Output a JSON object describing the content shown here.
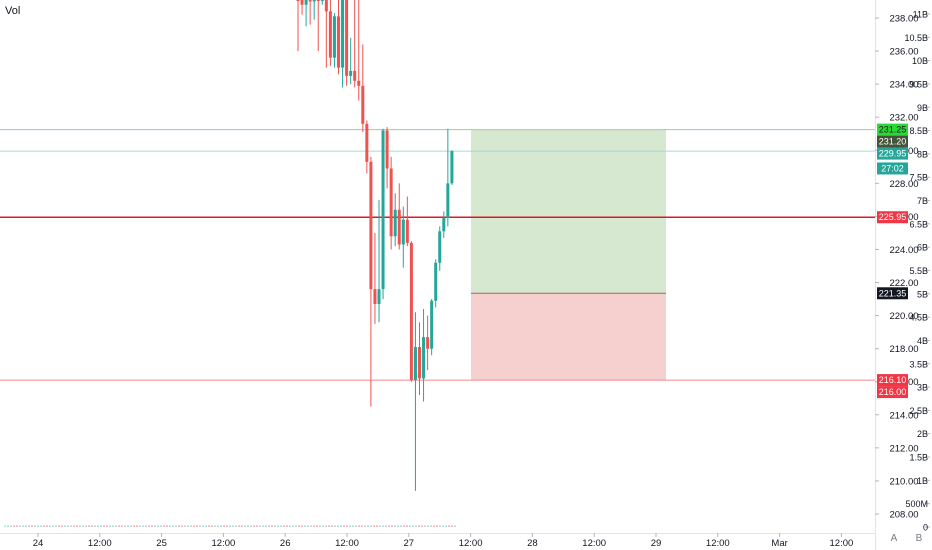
{
  "legend": {
    "volume_label": "Vol"
  },
  "buttons": {
    "auto_label": "A",
    "log_label": "B"
  },
  "colors": {
    "up": "#26a69a",
    "down": "#ef5350",
    "profit_zone": "#d6e8d0",
    "loss_zone": "#f6cfcf"
  },
  "chart_data": {
    "type": "candlestick",
    "price_axis": {
      "ticks": [
        "238.00",
        "236.00",
        "234.00",
        "232.00",
        "230.00",
        "228.00",
        "226.00",
        "224.00",
        "222.00",
        "220.00",
        "218.00",
        "216.00",
        "214.00",
        "212.00",
        "210.00",
        "208.00"
      ],
      "ylim": [
        207.3,
        239.6
      ]
    },
    "volume_axis": {
      "ticks": [
        "11B",
        "10.5B",
        "10B",
        "9.5B",
        "9B",
        "8.5B",
        "8B",
        "7.5B",
        "7B",
        "6.5B",
        "6B",
        "5.5B",
        "5B",
        "4.5B",
        "4B",
        "3.5B",
        "3B",
        "2.5B",
        "2B",
        "1.5B",
        "1B",
        "500M",
        "0"
      ]
    },
    "time_axis": {
      "ticks": [
        "24",
        "12:00",
        "25",
        "12:00",
        "26",
        "12:00",
        "27",
        "12:00",
        "28",
        "12:00",
        "29",
        "12:00",
        "Mar",
        "12:00"
      ]
    },
    "price_labels": [
      {
        "text": "231.25",
        "price": 231.25,
        "bg": "#2bd936",
        "fg": "#131722"
      },
      {
        "text": "231.20",
        "price": 231.2,
        "bg": "#44543a",
        "fg": "#ffffff"
      },
      {
        "text": "229.95",
        "price": 229.95,
        "bg": "#26a69a",
        "fg": "#ffffff"
      },
      {
        "text": "27:02",
        "price": 228.9,
        "bg": "#26a69a",
        "fg": "#ffffff"
      },
      {
        "text": "225.95",
        "price": 225.95,
        "bg": "#f23645",
        "fg": "#ffffff"
      },
      {
        "text": "221.35",
        "price": 221.35,
        "bg": "#131722",
        "fg": "#ffffff"
      },
      {
        "text": "216.10",
        "price": 216.1,
        "bg": "#f23645",
        "fg": "#ffffff"
      },
      {
        "text": "216.00",
        "price": 216.0,
        "bg": "#f23645",
        "fg": "#ffffff"
      }
    ],
    "horizontal_lines": [
      {
        "price": 231.25,
        "color": "#8fd98f",
        "width": 1
      },
      {
        "price": 229.95,
        "color": "#a0dcd6",
        "width": 1
      },
      {
        "price": 225.95,
        "color": "#e0191f",
        "width": 1.5
      },
      {
        "price": 216.1,
        "color": "#f08a8a",
        "width": 1
      }
    ],
    "position_tool": {
      "entry": 221.35,
      "target": 231.25,
      "stop": 216.1
    },
    "candles": [
      {
        "o": 239.9,
        "h": 240.2,
        "l": 236.0,
        "c": 239.6
      },
      {
        "o": 239.6,
        "h": 240.0,
        "l": 238.2,
        "c": 238.8
      },
      {
        "o": 238.8,
        "h": 240.0,
        "l": 237.5,
        "c": 239.7
      },
      {
        "o": 239.7,
        "h": 240.0,
        "l": 237.6,
        "c": 239.0
      },
      {
        "o": 239.0,
        "h": 240.0,
        "l": 237.9,
        "c": 239.6
      },
      {
        "o": 239.6,
        "h": 240.0,
        "l": 236.0,
        "c": 239.3
      },
      {
        "o": 239.3,
        "h": 240.0,
        "l": 238.8,
        "c": 239.9
      },
      {
        "o": 239.9,
        "h": 240.0,
        "l": 235.0,
        "c": 238.4
      },
      {
        "o": 238.4,
        "h": 239.2,
        "l": 235.1,
        "c": 235.6
      },
      {
        "o": 235.6,
        "h": 238.3,
        "l": 235.0,
        "c": 238.1
      },
      {
        "o": 238.1,
        "h": 240.0,
        "l": 234.6,
        "c": 235.0
      },
      {
        "o": 235.0,
        "h": 240.0,
        "l": 233.8,
        "c": 239.5
      },
      {
        "o": 239.5,
        "h": 240.0,
        "l": 233.9,
        "c": 234.5
      },
      {
        "o": 234.5,
        "h": 236.8,
        "l": 234.0,
        "c": 234.8
      },
      {
        "o": 234.8,
        "h": 240.0,
        "l": 233.8,
        "c": 234.2
      },
      {
        "o": 234.2,
        "h": 240.0,
        "l": 233.0,
        "c": 233.9
      },
      {
        "o": 233.9,
        "h": 236.4,
        "l": 231.1,
        "c": 231.6
      },
      {
        "o": 231.6,
        "h": 231.8,
        "l": 228.6,
        "c": 229.3
      },
      {
        "o": 229.3,
        "h": 229.6,
        "l": 214.5,
        "c": 221.6
      },
      {
        "o": 221.6,
        "h": 225.0,
        "l": 219.5,
        "c": 220.7
      },
      {
        "o": 220.7,
        "h": 227.0,
        "l": 219.6,
        "c": 221.6
      },
      {
        "o": 221.6,
        "h": 231.3,
        "l": 221.0,
        "c": 231.2
      },
      {
        "o": 231.2,
        "h": 231.4,
        "l": 227.7,
        "c": 228.9
      },
      {
        "o": 228.9,
        "h": 229.6,
        "l": 224.0,
        "c": 224.8
      },
      {
        "o": 224.8,
        "h": 227.4,
        "l": 224.2,
        "c": 226.4
      },
      {
        "o": 226.4,
        "h": 228.0,
        "l": 224.0,
        "c": 224.3
      },
      {
        "o": 224.3,
        "h": 226.6,
        "l": 222.9,
        "c": 225.8
      },
      {
        "o": 225.8,
        "h": 227.2,
        "l": 224.2,
        "c": 224.4
      },
      {
        "o": 224.4,
        "h": 224.5,
        "l": 216.0,
        "c": 216.1
      },
      {
        "o": 216.1,
        "h": 220.2,
        "l": 209.4,
        "c": 218.1
      },
      {
        "o": 218.1,
        "h": 219.6,
        "l": 215.2,
        "c": 216.2
      },
      {
        "o": 216.2,
        "h": 220.4,
        "l": 214.8,
        "c": 218.7
      },
      {
        "o": 218.7,
        "h": 220.0,
        "l": 216.7,
        "c": 218.0
      },
      {
        "o": 218.0,
        "h": 221.0,
        "l": 217.6,
        "c": 220.9
      },
      {
        "o": 220.9,
        "h": 223.4,
        "l": 220.5,
        "c": 223.2
      },
      {
        "o": 223.2,
        "h": 225.4,
        "l": 222.7,
        "c": 225.1
      },
      {
        "o": 225.1,
        "h": 226.3,
        "l": 224.7,
        "c": 225.9
      },
      {
        "o": 225.9,
        "h": 231.3,
        "l": 225.4,
        "c": 228.0
      },
      {
        "o": 228.0,
        "h": 230.0,
        "l": 227.9,
        "c": 229.95
      }
    ]
  }
}
